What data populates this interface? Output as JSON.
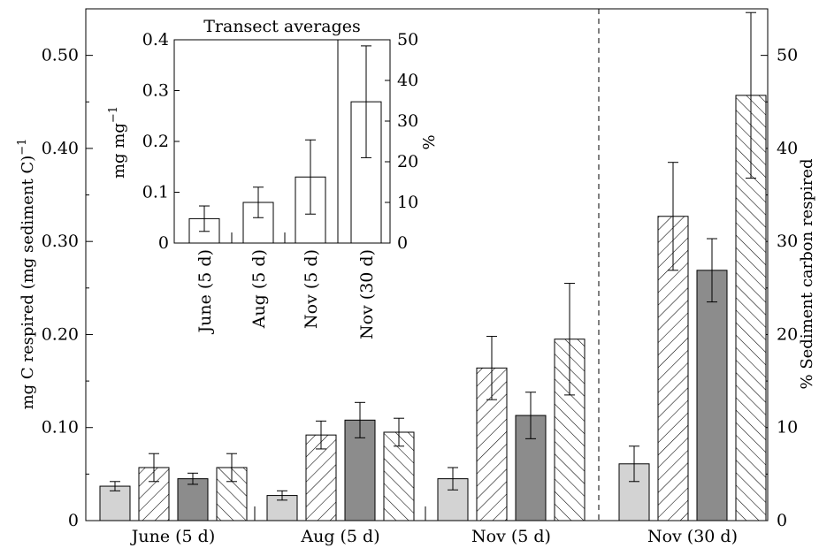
{
  "chart_data": [
    {
      "type": "bar",
      "categories": [
        "June (5 d)",
        "Aug (5 d)",
        "Nov (5 d)",
        "Nov (30 d)"
      ],
      "bars_per_category": 4,
      "bar_styles": [
        "light-gray-solid",
        "hatched-forward",
        "dark-gray-solid",
        "hatched-back"
      ],
      "values": [
        [
          0.037,
          0.057,
          0.045,
          0.057
        ],
        [
          0.027,
          0.092,
          0.108,
          0.095
        ],
        [
          0.045,
          0.164,
          0.113,
          0.195
        ],
        [
          0.061,
          0.327,
          0.269,
          0.457
        ]
      ],
      "errors": [
        [
          0.005,
          0.015,
          0.006,
          0.015
        ],
        [
          0.005,
          0.015,
          0.019,
          0.015
        ],
        [
          0.012,
          0.034,
          0.025,
          0.06
        ],
        [
          0.019,
          0.058,
          0.034,
          0.089
        ]
      ],
      "ylabel": "mg C respired (mg sediment C)",
      "ylabel_sup": "−1",
      "ylim": [
        0,
        0.55
      ],
      "yticks": [
        "0",
        "0.10",
        "0.20",
        "0.30",
        "0.40",
        "0.50"
      ],
      "ytick_values": [
        0,
        0.1,
        0.2,
        0.3,
        0.4,
        0.5
      ],
      "y2label": "% Sediment carbon respired",
      "y2lim": [
        0,
        55
      ],
      "y2ticks": [
        "0",
        "10",
        "20",
        "30",
        "40",
        "50"
      ],
      "y2tick_values": [
        0,
        10,
        20,
        30,
        40,
        50
      ],
      "separator_after_category": 2,
      "colors": {
        "light_gray": "#d3d3d3",
        "dark_gray": "#8c8c8c"
      }
    },
    {
      "type": "bar",
      "title": "Transect averages",
      "categories": [
        "June (5 d)",
        "Aug (5 d)",
        "Nov (5 d)",
        "Nov (30 d)"
      ],
      "values": [
        0.048,
        0.08,
        0.13,
        0.278
      ],
      "errors": [
        0.025,
        0.03,
        0.073,
        0.11
      ],
      "ylabel": "mg mg",
      "ylabel_sup": "−1",
      "ylim": [
        0,
        0.4
      ],
      "yticks": [
        "0",
        "0.1",
        "0.2",
        "0.3",
        "0.4"
      ],
      "ytick_values": [
        0,
        0.1,
        0.2,
        0.3,
        0.4
      ],
      "y2label": "%",
      "y2lim": [
        0,
        50
      ],
      "y2ticks": [
        "0",
        "10",
        "20",
        "30",
        "40",
        "50"
      ],
      "y2tick_values": [
        0,
        10,
        20,
        30,
        40,
        50
      ],
      "separator_after_category": 2
    }
  ]
}
